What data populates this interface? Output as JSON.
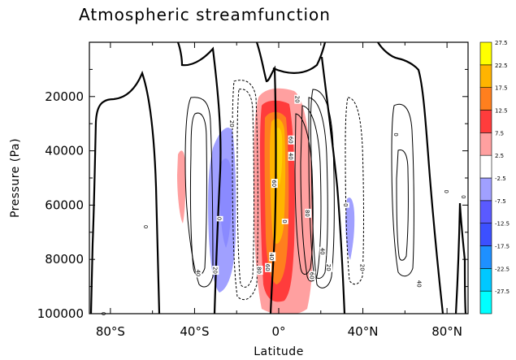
{
  "chart_data": {
    "type": "contour",
    "title": "Atmospheric streamfunction",
    "xlabel": "Latitude",
    "ylabel": "Pressure (Pa)",
    "xlim": [
      -90,
      90
    ],
    "ylim": [
      100000,
      0
    ],
    "x_ticks": [
      -80,
      -40,
      0,
      40,
      80
    ],
    "x_tick_labels": [
      "80°S",
      "40°S",
      "0°",
      "40°N",
      "80°N"
    ],
    "y_ticks": [
      20000,
      40000,
      60000,
      80000,
      100000
    ],
    "y_tick_labels": [
      "20000",
      "40000",
      "60000",
      "80000",
      "100000"
    ],
    "colorbar": {
      "levels": [
        -27.5,
        -22.5,
        -17.5,
        -12.5,
        -7.5,
        -2.5,
        2.5,
        7.5,
        12.5,
        17.5,
        22.5,
        27.5
      ],
      "labels": [
        "-27.5",
        "-22.5",
        "-17.5",
        "-12.5",
        "-7.5",
        "-2.5",
        "2.5",
        "7.5",
        "12.5",
        "17.5",
        "22.5",
        "27.5"
      ],
      "colors": [
        "#00ffff",
        "#00c8ff",
        "#1e90ff",
        "#3c50ff",
        "#5a5aff",
        "#a0a0ff",
        "#ffffff",
        "#ffa0a0",
        "#ff3c3c",
        "#ff7f1e",
        "#ffb400",
        "#ffff00"
      ]
    },
    "contour_labels": [
      {
        "text": "20",
        "lat": -22,
        "p": 30000
      },
      {
        "text": "20",
        "lat": 9,
        "p": 21000
      },
      {
        "text": "20",
        "lat": -30,
        "p": 84000
      },
      {
        "text": "20",
        "lat": 24,
        "p": 83000
      },
      {
        "text": "20",
        "lat": 40,
        "p": 83000
      },
      {
        "text": "40",
        "lat": 21,
        "p": 77000
      },
      {
        "text": "40",
        "lat": -38,
        "p": 85000
      },
      {
        "text": "60",
        "lat": -2,
        "p": 52000
      },
      {
        "text": "60",
        "lat": 6,
        "p": 36000
      },
      {
        "text": "60",
        "lat": 16,
        "p": 86000
      },
      {
        "text": "80",
        "lat": 14,
        "p": 63000
      },
      {
        "text": "40",
        "lat": 6,
        "p": 42000
      },
      {
        "text": "40",
        "lat": 67,
        "p": 89000
      },
      {
        "text": "60",
        "lat": -5,
        "p": 83000
      },
      {
        "text": "40",
        "lat": -3,
        "p": 79000
      },
      {
        "text": "80",
        "lat": -9,
        "p": 84000
      },
      {
        "text": "0",
        "lat": -28,
        "p": 65000
      },
      {
        "text": "0",
        "lat": -63,
        "p": 68000
      },
      {
        "text": "0",
        "lat": 3,
        "p": 66000
      },
      {
        "text": "0",
        "lat": 32,
        "p": 60000
      },
      {
        "text": "0",
        "lat": 56,
        "p": 34000
      },
      {
        "text": "0",
        "lat": 80,
        "p": 55000
      },
      {
        "text": "0",
        "lat": 88,
        "p": 57000
      },
      {
        "text": "0",
        "lat": -83,
        "p": 100000
      }
    ]
  }
}
